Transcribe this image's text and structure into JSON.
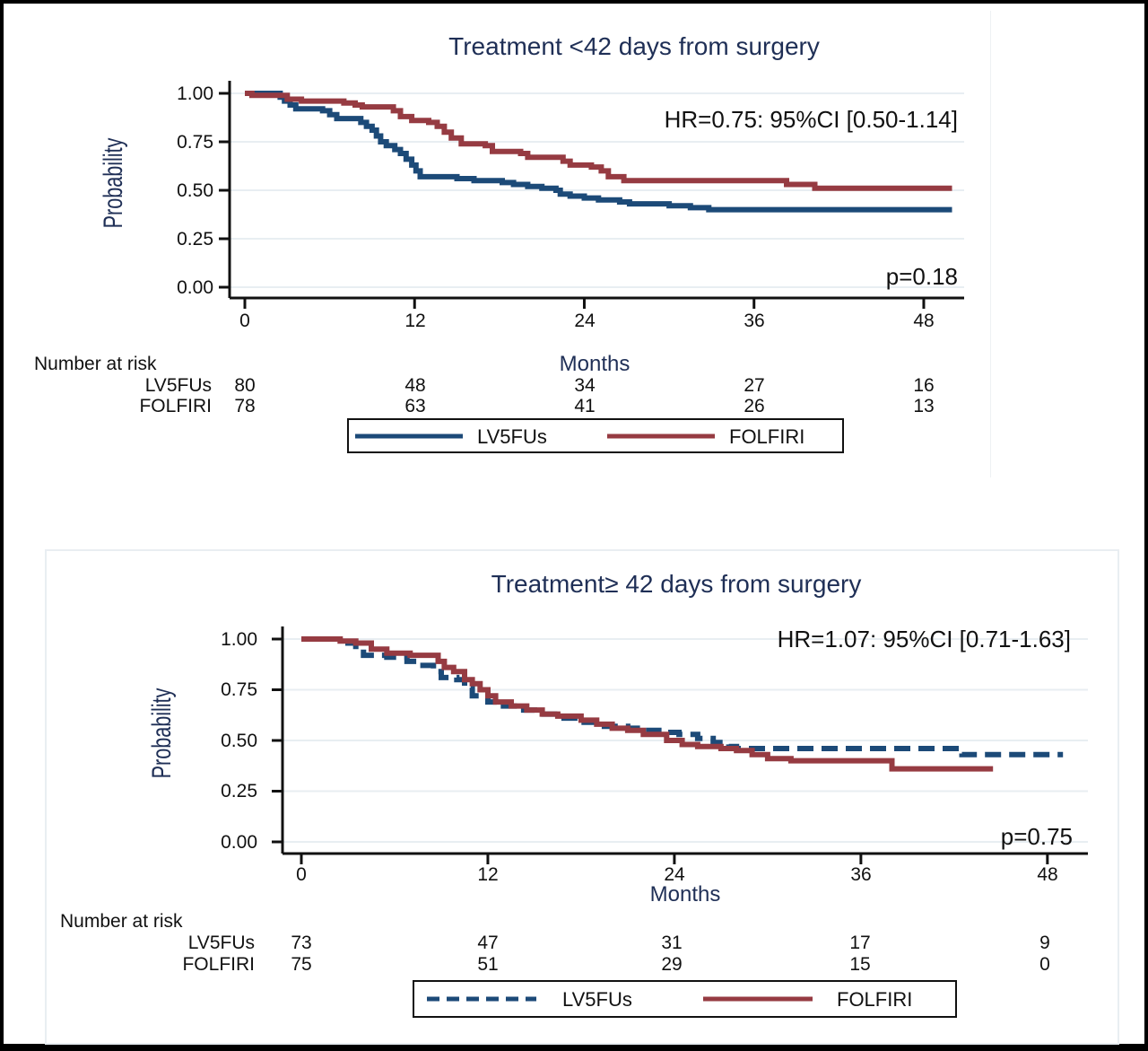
{
  "colors": {
    "lv5fus": "#1c4a78",
    "folfiri": "#963b42",
    "title": "#1f2f56",
    "grid": "#e8eef2"
  },
  "chart_data": [
    {
      "type": "line",
      "subtype": "kaplan-meier step",
      "title": "Treatment <42 days from surgery",
      "xlabel": "Months",
      "ylabel": "Probability",
      "xlim": [
        0,
        50
      ],
      "ylim": [
        0,
        1
      ],
      "xticks": [
        "0",
        "12",
        "24",
        "36",
        "48"
      ],
      "yticks": [
        "0.00",
        "0.25",
        "0.50",
        "0.75",
        "1.00"
      ],
      "grid": true,
      "annotations": {
        "hr": "HR=0.75: 95%CI [0.50-1.14]",
        "p": "p=0.18"
      },
      "risk_table": {
        "header": "Number at risk",
        "times": [
          0,
          12,
          24,
          36,
          48
        ],
        "rows": [
          {
            "label": "LV5FUs",
            "values": [
              "80",
              "48",
              "34",
              "27",
              "16"
            ]
          },
          {
            "label": "FOLFIRI",
            "values": [
              "78",
              "63",
              "41",
              "26",
              "13"
            ]
          }
        ]
      },
      "legend": {
        "position": "bottom",
        "entries": [
          "LV5FUs",
          "FOLFIRI"
        ]
      },
      "series": [
        {
          "name": "LV5FUs",
          "dashed": false,
          "points": [
            [
              0,
              1.0
            ],
            [
              2.2,
              1.0
            ],
            [
              2.5,
              0.98
            ],
            [
              2.8,
              0.96
            ],
            [
              3.2,
              0.94
            ],
            [
              3.6,
              0.92
            ],
            [
              5.0,
              0.92
            ],
            [
              5.5,
              0.91
            ],
            [
              6.0,
              0.89
            ],
            [
              6.5,
              0.87
            ],
            [
              7.8,
              0.87
            ],
            [
              8.2,
              0.85
            ],
            [
              8.6,
              0.83
            ],
            [
              9.0,
              0.81
            ],
            [
              9.3,
              0.78
            ],
            [
              9.6,
              0.75
            ],
            [
              10.0,
              0.73
            ],
            [
              10.6,
              0.71
            ],
            [
              11.0,
              0.69
            ],
            [
              11.4,
              0.66
            ],
            [
              11.8,
              0.63
            ],
            [
              12.1,
              0.6
            ],
            [
              12.4,
              0.57
            ],
            [
              14.0,
              0.57
            ],
            [
              15.0,
              0.56
            ],
            [
              16.2,
              0.55
            ],
            [
              18.2,
              0.54
            ],
            [
              19.0,
              0.53
            ],
            [
              20.0,
              0.52
            ],
            [
              21.0,
              0.51
            ],
            [
              22.0,
              0.5
            ],
            [
              22.3,
              0.48
            ],
            [
              23.0,
              0.47
            ],
            [
              24.0,
              0.46
            ],
            [
              25.0,
              0.45
            ],
            [
              26.5,
              0.44
            ],
            [
              27.2,
              0.43
            ],
            [
              30.0,
              0.42
            ],
            [
              31.5,
              0.41
            ],
            [
              32.8,
              0.4
            ],
            [
              50.0,
              0.4
            ]
          ]
        },
        {
          "name": "FOLFIRI",
          "dashed": false,
          "points": [
            [
              0,
              1.0
            ],
            [
              0.5,
              0.99
            ],
            [
              2.5,
              0.99
            ],
            [
              3.0,
              0.97
            ],
            [
              4.0,
              0.96
            ],
            [
              7.0,
              0.95
            ],
            [
              7.8,
              0.94
            ],
            [
              8.3,
              0.93
            ],
            [
              10.0,
              0.93
            ],
            [
              10.5,
              0.91
            ],
            [
              11.0,
              0.88
            ],
            [
              11.8,
              0.86
            ],
            [
              13.0,
              0.85
            ],
            [
              13.6,
              0.83
            ],
            [
              14.1,
              0.8
            ],
            [
              14.6,
              0.77
            ],
            [
              15.3,
              0.74
            ],
            [
              17.0,
              0.73
            ],
            [
              17.5,
              0.7
            ],
            [
              19.5,
              0.69
            ],
            [
              20.0,
              0.67
            ],
            [
              22.5,
              0.65
            ],
            [
              23.0,
              0.63
            ],
            [
              24.5,
              0.62
            ],
            [
              25.2,
              0.6
            ],
            [
              25.7,
              0.57
            ],
            [
              26.8,
              0.55
            ],
            [
              37.5,
              0.55
            ],
            [
              38.3,
              0.53
            ],
            [
              40.3,
              0.51
            ],
            [
              50.0,
              0.51
            ]
          ]
        }
      ]
    },
    {
      "type": "line",
      "subtype": "kaplan-meier step",
      "title": "Treatment≥ 42 days from surgery",
      "xlabel": "Months",
      "ylabel": "Probability",
      "xlim": [
        0,
        50
      ],
      "ylim": [
        0,
        1
      ],
      "xticks": [
        "0",
        "12",
        "24",
        "36",
        "48"
      ],
      "yticks": [
        "0.00",
        "0.25",
        "0.50",
        "0.75",
        "1.00"
      ],
      "grid": true,
      "annotations": {
        "hr": "HR=1.07: 95%CI [0.71-1.63]",
        "p": "p=0.75"
      },
      "risk_table": {
        "header": "Number at risk",
        "times": [
          0,
          12,
          24,
          36,
          48
        ],
        "rows": [
          {
            "label": "LV5FUs",
            "values": [
              "73",
              "47",
              "31",
              "17",
              "9"
            ]
          },
          {
            "label": "FOLFIRI",
            "values": [
              "75",
              "51",
              "29",
              "15",
              "0"
            ]
          }
        ]
      },
      "legend": {
        "position": "bottom",
        "entries": [
          "LV5FUs",
          "FOLFIRI"
        ]
      },
      "series": [
        {
          "name": "LV5FUs",
          "dashed": true,
          "points": [
            [
              0,
              1.0
            ],
            [
              2.5,
              1.0
            ],
            [
              3.0,
              0.98
            ],
            [
              3.5,
              0.95
            ],
            [
              4.0,
              0.92
            ],
            [
              5.5,
              0.91
            ],
            [
              6.8,
              0.89
            ],
            [
              7.5,
              0.87
            ],
            [
              8.5,
              0.84
            ],
            [
              9.0,
              0.81
            ],
            [
              10.0,
              0.8
            ],
            [
              10.5,
              0.76
            ],
            [
              11.0,
              0.72
            ],
            [
              12.0,
              0.69
            ],
            [
              13.0,
              0.67
            ],
            [
              14.0,
              0.65
            ],
            [
              15.0,
              0.63
            ],
            [
              16.5,
              0.61
            ],
            [
              18.0,
              0.59
            ],
            [
              19.5,
              0.57
            ],
            [
              21.0,
              0.56
            ],
            [
              22.0,
              0.55
            ],
            [
              23.0,
              0.54
            ],
            [
              24.3,
              0.53
            ],
            [
              25.5,
              0.51
            ],
            [
              26.5,
              0.49
            ],
            [
              27.5,
              0.47
            ],
            [
              28.0,
              0.46
            ],
            [
              31.0,
              0.46
            ],
            [
              42.0,
              0.46
            ],
            [
              42.5,
              0.43
            ],
            [
              49.0,
              0.43
            ]
          ]
        },
        {
          "name": "FOLFIRI",
          "dashed": false,
          "points": [
            [
              0,
              1.0
            ],
            [
              2.0,
              1.0
            ],
            [
              2.5,
              0.99
            ],
            [
              3.5,
              0.98
            ],
            [
              4.5,
              0.95
            ],
            [
              5.5,
              0.93
            ],
            [
              7.0,
              0.92
            ],
            [
              8.0,
              0.92
            ],
            [
              8.8,
              0.89
            ],
            [
              9.2,
              0.86
            ],
            [
              9.8,
              0.84
            ],
            [
              10.5,
              0.8
            ],
            [
              11.0,
              0.78
            ],
            [
              11.5,
              0.75
            ],
            [
              12.0,
              0.72
            ],
            [
              12.5,
              0.69
            ],
            [
              13.5,
              0.67
            ],
            [
              14.5,
              0.65
            ],
            [
              15.5,
              0.63
            ],
            [
              16.5,
              0.62
            ],
            [
              18.0,
              0.6
            ],
            [
              19.0,
              0.58
            ],
            [
              20.0,
              0.56
            ],
            [
              21.0,
              0.55
            ],
            [
              22.0,
              0.53
            ],
            [
              23.5,
              0.5
            ],
            [
              24.5,
              0.48
            ],
            [
              25.5,
              0.47
            ],
            [
              27.0,
              0.46
            ],
            [
              28.0,
              0.45
            ],
            [
              29.0,
              0.43
            ],
            [
              30.0,
              0.41
            ],
            [
              31.5,
              0.4
            ],
            [
              37.5,
              0.4
            ],
            [
              38.0,
              0.36
            ],
            [
              44.5,
              0.36
            ]
          ]
        }
      ]
    }
  ]
}
